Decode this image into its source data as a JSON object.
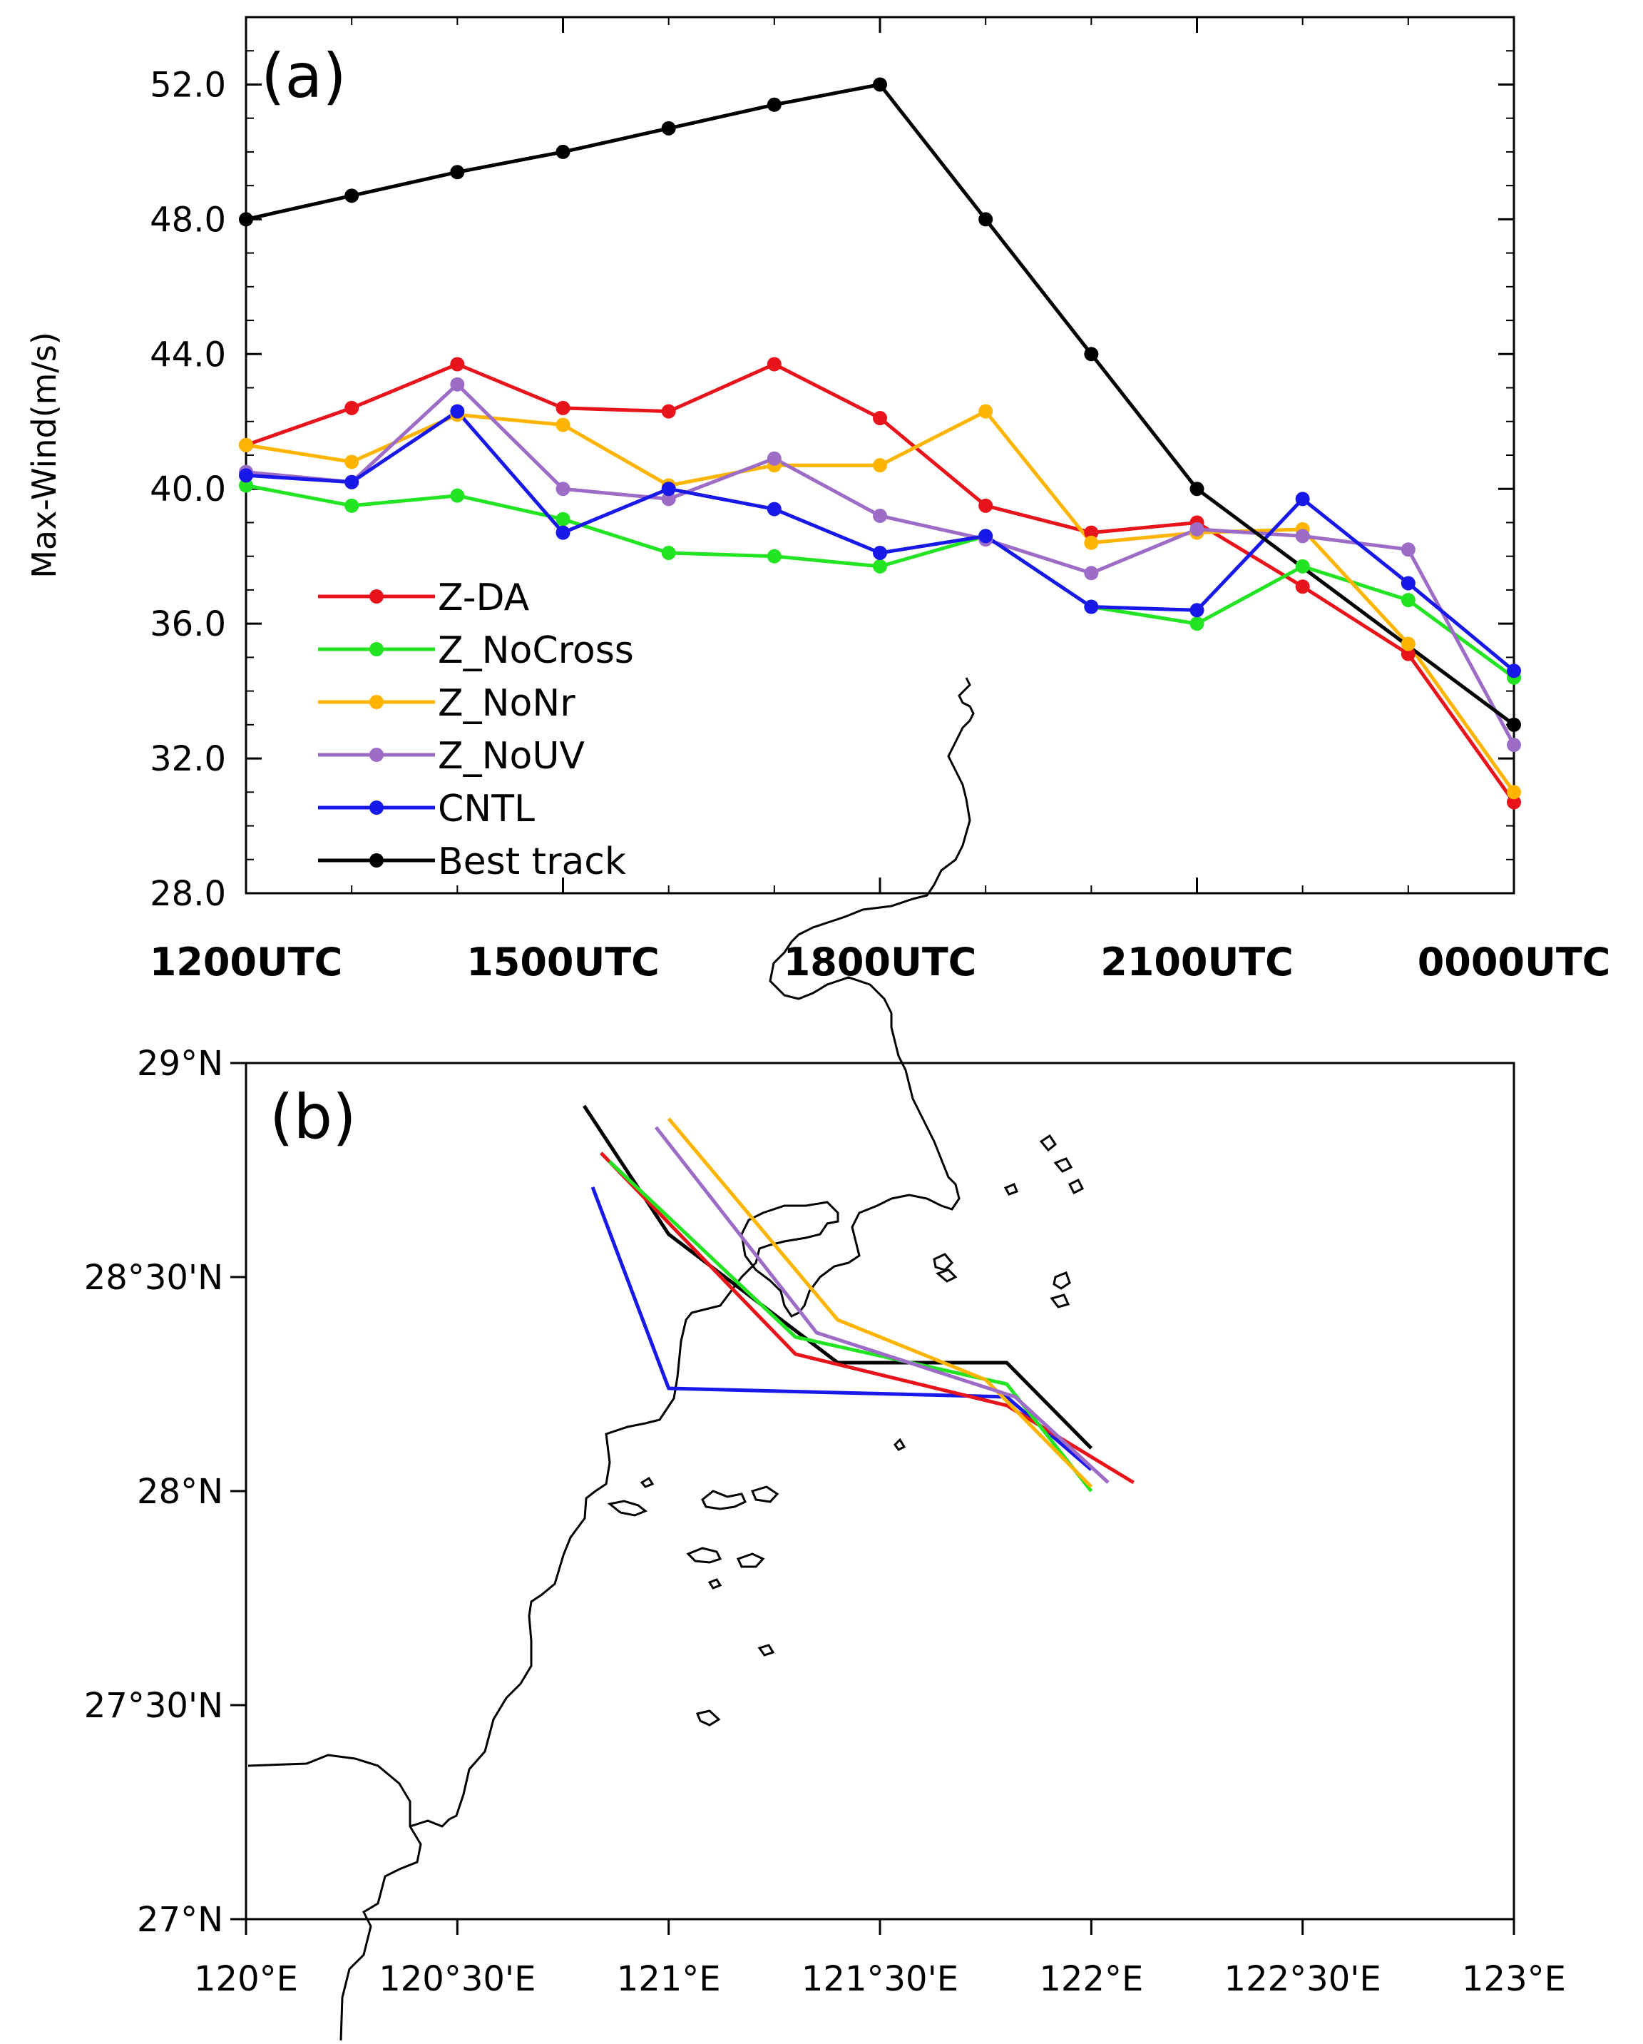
{
  "chart_data": [
    {
      "type": "line",
      "panel_label": "(a)",
      "title": "",
      "xlabel": "",
      "ylabel": "Max-Wind(m/s)",
      "ylim": [
        28,
        54
      ],
      "yticks": [
        "28.0",
        "32.0",
        "36.0",
        "40.0",
        "44.0",
        "48.0",
        "52.0"
      ],
      "ytick_values": [
        28,
        32,
        36,
        40,
        44,
        48,
        52
      ],
      "xtick_labels": [
        "1200UTC",
        "1500UTC",
        "1800UTC",
        "2100UTC",
        "0000UTC"
      ],
      "xtick_hours": [
        0,
        3,
        6,
        9,
        12
      ],
      "x": [
        0,
        1,
        2,
        3,
        4,
        5,
        6,
        7,
        8,
        9,
        10,
        11,
        12
      ],
      "series": [
        {
          "name": "Z-DA",
          "color": "#e8141c",
          "values": [
            41.3,
            42.4,
            43.7,
            42.4,
            42.3,
            43.7,
            42.1,
            39.5,
            38.7,
            39.0,
            37.1,
            35.1,
            30.7
          ]
        },
        {
          "name": "Z_NoCross",
          "color": "#22e422",
          "values": [
            40.1,
            39.5,
            39.8,
            39.1,
            38.1,
            38.0,
            37.7,
            38.6,
            36.5,
            36.0,
            37.7,
            36.7,
            34.4
          ]
        },
        {
          "name": "Z_NoNr",
          "color": "#ffb400",
          "values": [
            41.3,
            40.8,
            42.2,
            41.9,
            40.1,
            40.7,
            40.7,
            42.3,
            38.4,
            38.7,
            38.8,
            35.4,
            31.0
          ]
        },
        {
          "name": "Z_NoUV",
          "color": "#9c6cc6",
          "values": [
            40.5,
            40.2,
            43.1,
            40.0,
            39.7,
            40.9,
            39.2,
            38.5,
            37.5,
            38.8,
            38.6,
            38.2,
            32.4
          ]
        },
        {
          "name": "CNTL",
          "color": "#1818e8",
          "values": [
            40.4,
            40.2,
            42.3,
            38.7,
            40.0,
            39.4,
            38.1,
            38.6,
            36.5,
            36.4,
            39.7,
            37.2,
            34.6
          ]
        },
        {
          "name": "Best track",
          "color": "#000000",
          "values": [
            48.0,
            48.7,
            49.4,
            50.0,
            50.7,
            51.4,
            52.0,
            48.0,
            44.0,
            40.0,
            null,
            null,
            33.0
          ]
        }
      ]
    },
    {
      "type": "line",
      "panel_label": "(b)",
      "title": "",
      "xlabel": "",
      "ylabel": "",
      "xlim": [
        120,
        123
      ],
      "ylim": [
        27,
        29
      ],
      "xtick_labels": [
        "120°E",
        "120°30'E",
        "121°E",
        "121°30'E",
        "122°E",
        "122°30'E",
        "123°E"
      ],
      "xtick_values": [
        120,
        120.5,
        121,
        121.5,
        122,
        122.5,
        123
      ],
      "ytick_labels": [
        "27°N",
        "27°30'N",
        "28°N",
        "28°30'N",
        "29°N"
      ],
      "ytick_values": [
        27,
        27.5,
        28,
        28.5,
        29
      ],
      "series": [
        {
          "name": "Best track",
          "color": "#000000",
          "points": [
            [
              120.8,
              28.9
            ],
            [
              121.0,
              28.6
            ],
            [
              121.4,
              28.3
            ],
            [
              121.8,
              28.3
            ],
            [
              122.0,
              28.1
            ]
          ]
        },
        {
          "name": "CNTL",
          "color": "#1818e8",
          "points": [
            [
              120.82,
              28.71
            ],
            [
              121.0,
              28.24
            ],
            [
              121.8,
              28.22
            ],
            [
              122.0,
              28.05
            ]
          ]
        },
        {
          "name": "Z-DA",
          "color": "#e8141c",
          "points": [
            [
              120.84,
              28.79
            ],
            [
              121.3,
              28.32
            ],
            [
              121.8,
              28.2
            ],
            [
              122.1,
              28.02
            ]
          ]
        },
        {
          "name": "Z_NoCross",
          "color": "#22e422",
          "points": [
            [
              120.86,
              28.77
            ],
            [
              121.3,
              28.36
            ],
            [
              121.8,
              28.25
            ],
            [
              122.0,
              28.0
            ]
          ]
        },
        {
          "name": "Z_NoNr",
          "color": "#ffb400",
          "points": [
            [
              121.0,
              28.87
            ],
            [
              121.4,
              28.4
            ],
            [
              121.75,
              28.26
            ],
            [
              122.0,
              28.01
            ]
          ]
        },
        {
          "name": "Z_NoUV",
          "color": "#9c6cc6",
          "points": [
            [
              120.97,
              28.85
            ],
            [
              121.35,
              28.37
            ],
            [
              121.82,
              28.22
            ],
            [
              122.04,
              28.02
            ]
          ]
        }
      ]
    }
  ]
}
